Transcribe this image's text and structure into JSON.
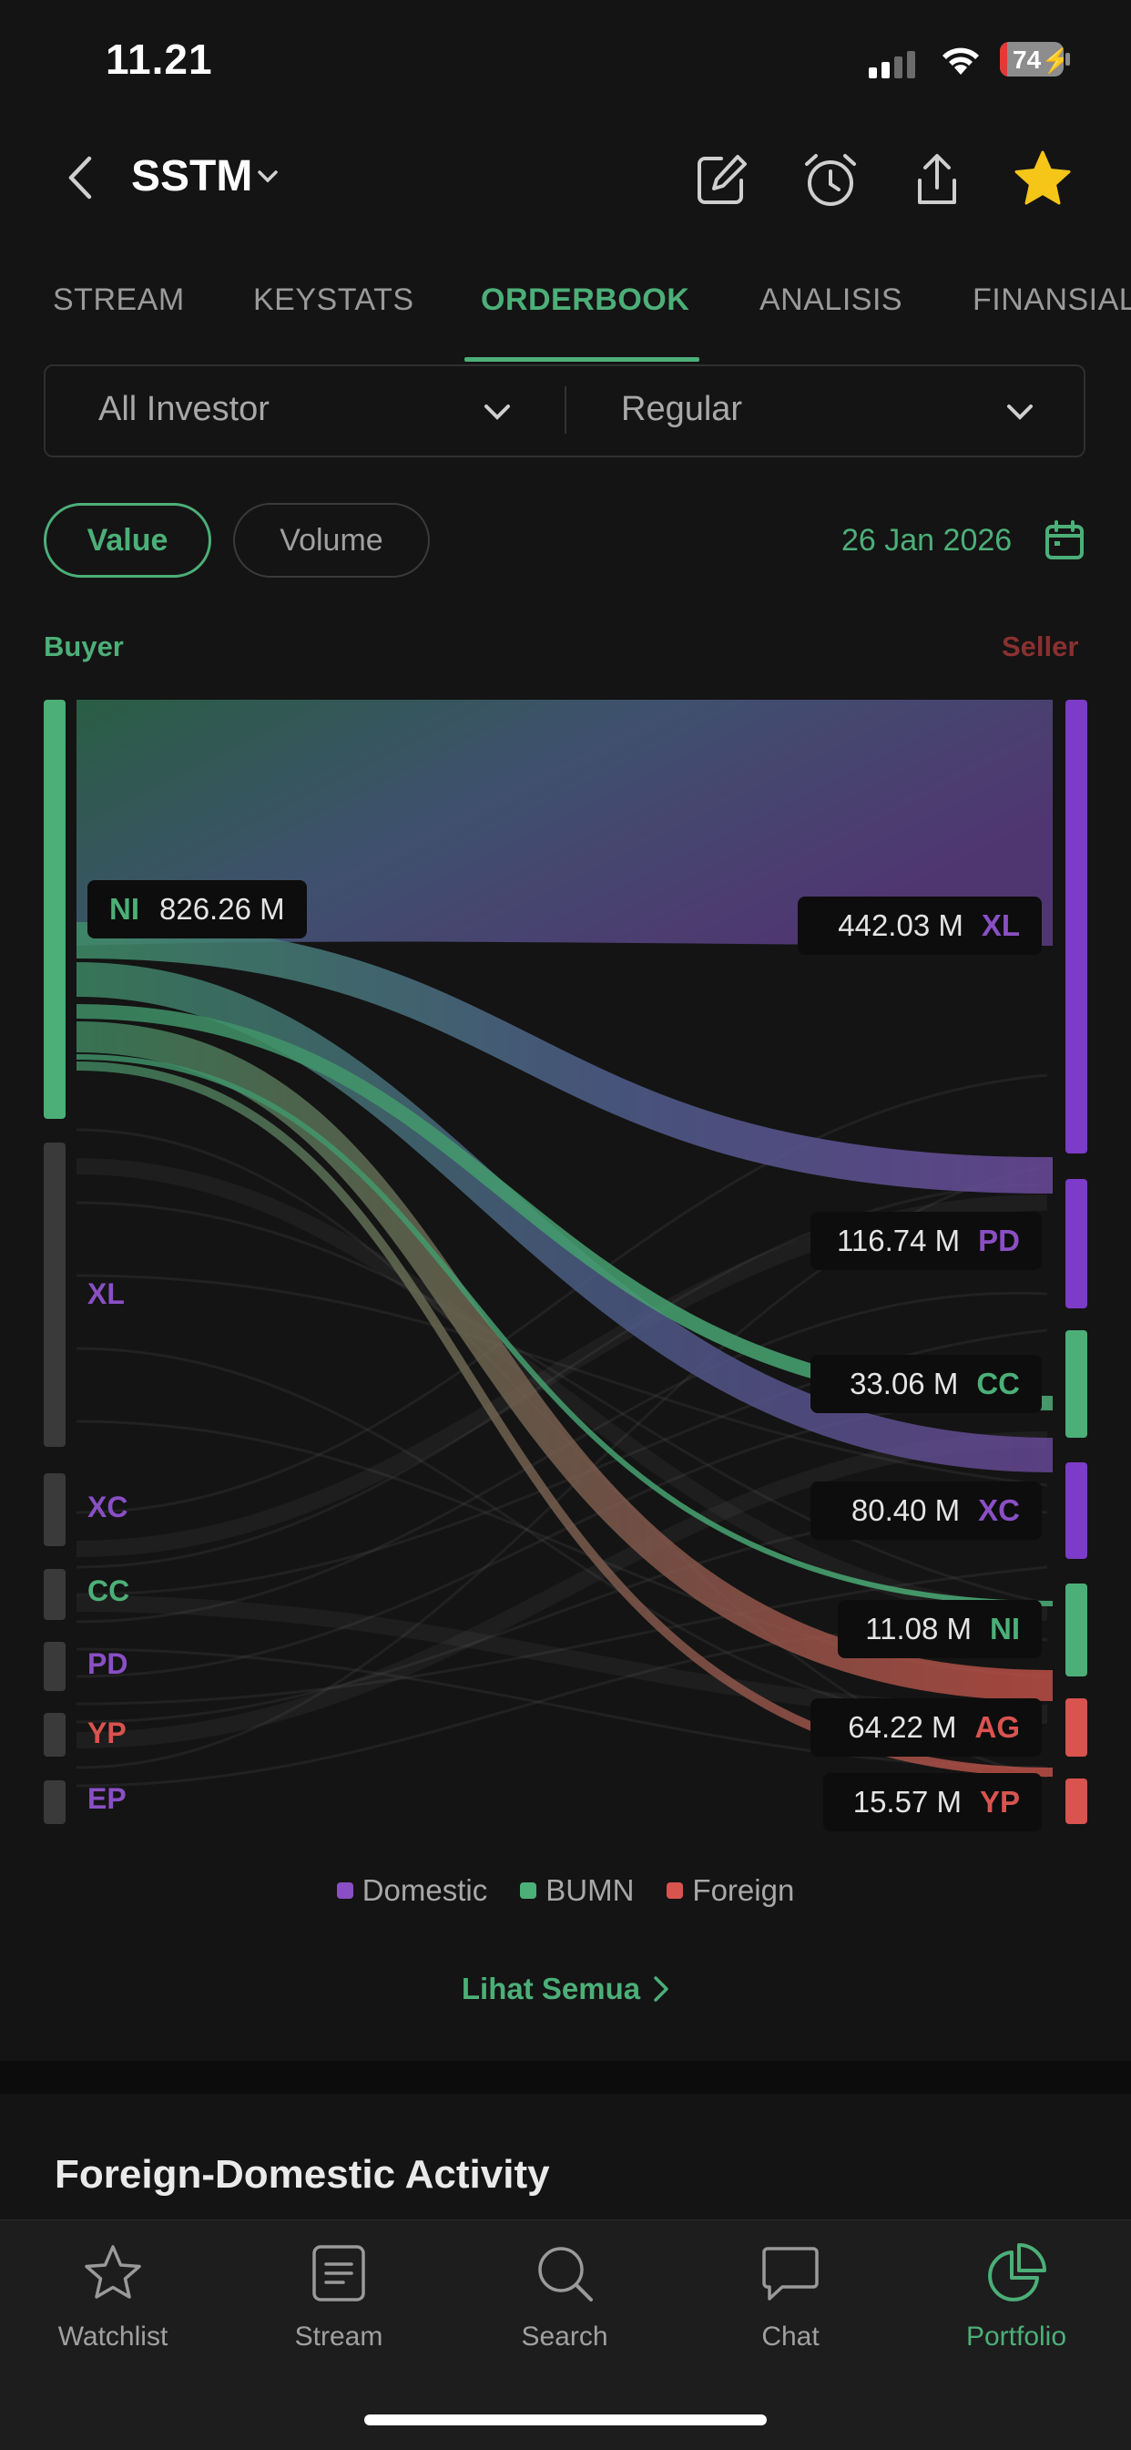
{
  "status_bar": {
    "time": "11.21",
    "battery": "74"
  },
  "header": {
    "ticker": "SSTM"
  },
  "tabs": [
    {
      "label": "STREAM",
      "active": false
    },
    {
      "label": "KEYSTATS",
      "active": false
    },
    {
      "label": "ORDERBOOK",
      "active": true
    },
    {
      "label": "ANALISIS",
      "active": false
    },
    {
      "label": "FINANSIAL",
      "active": false
    }
  ],
  "filters": {
    "investor": "All Investor",
    "market": "Regular"
  },
  "toggle": {
    "value_label": "Value",
    "volume_label": "Volume",
    "selected": "Value"
  },
  "date": "26 Jan 2026",
  "broker_flow": {
    "buyer_label": "Buyer",
    "seller_label": "Seller",
    "buyer_highlight": {
      "code": "NI",
      "value": "826.26 M",
      "type": "BUMN"
    },
    "buyers": [
      {
        "code": "NI",
        "type": "BUMN"
      },
      {
        "code": "XL",
        "type": "Domestic"
      },
      {
        "code": "XC",
        "type": "Domestic"
      },
      {
        "code": "CC",
        "type": "BUMN"
      },
      {
        "code": "PD",
        "type": "Domestic"
      },
      {
        "code": "YP",
        "type": "Foreign"
      },
      {
        "code": "EP",
        "type": "Domestic"
      }
    ],
    "sellers": [
      {
        "code": "XL",
        "value": "442.03 M",
        "type": "Domestic"
      },
      {
        "code": "PD",
        "value": "116.74 M",
        "type": "Domestic"
      },
      {
        "code": "CC",
        "value": "33.06 M",
        "type": "BUMN"
      },
      {
        "code": "XC",
        "value": "80.40 M",
        "type": "Domestic"
      },
      {
        "code": "NI",
        "value": "11.08 M",
        "type": "BUMN"
      },
      {
        "code": "AG",
        "value": "64.22 M",
        "type": "Foreign"
      },
      {
        "code": "YP",
        "value": "15.57 M",
        "type": "Foreign"
      }
    ]
  },
  "legend": [
    {
      "label": "Domestic",
      "color": "#8a4fc4"
    },
    {
      "label": "BUMN",
      "color": "#4caf78"
    },
    {
      "label": "Foreign",
      "color": "#d9534f"
    }
  ],
  "see_all": "Lihat Semua",
  "section_title": "Foreign-Domestic Activity",
  "bottom_nav": [
    {
      "label": "Watchlist",
      "icon": "star-outline-icon",
      "active": false
    },
    {
      "label": "Stream",
      "icon": "document-icon",
      "active": false
    },
    {
      "label": "Search",
      "icon": "search-icon",
      "active": false
    },
    {
      "label": "Chat",
      "icon": "chat-bubble-icon",
      "active": false
    },
    {
      "label": "Portfolio",
      "icon": "pie-chart-icon",
      "active": true
    }
  ],
  "colors": {
    "accent": "#4caf78",
    "domestic": "#8a4fc4",
    "bumn": "#4caf78",
    "foreign": "#d9534f",
    "seller_label": "#8a3030",
    "star": "#f5c518"
  }
}
